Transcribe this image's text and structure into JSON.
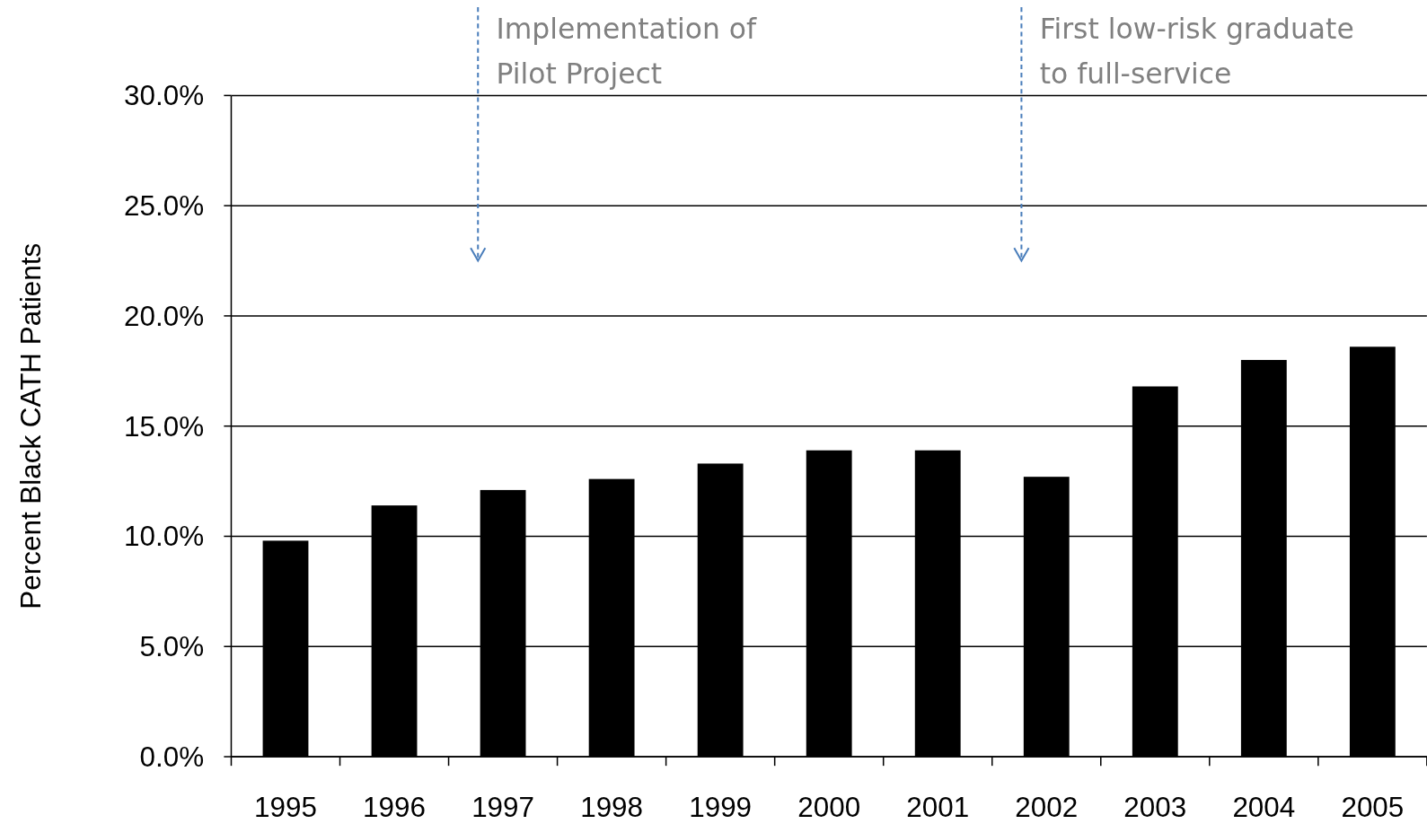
{
  "chart_data": {
    "type": "bar",
    "ylabel": "Percent Black CATH Patients",
    "categories": [
      "1995",
      "1996",
      "1997",
      "1998",
      "1999",
      "2000",
      "2001",
      "2002",
      "2003",
      "2004",
      "2005"
    ],
    "values": [
      9.8,
      11.4,
      12.1,
      12.6,
      13.3,
      13.9,
      13.9,
      12.7,
      16.8,
      18.0,
      18.6
    ],
    "color": "#000000",
    "ylim": [
      0,
      30
    ],
    "yticks": [
      {
        "value": 0,
        "label": "0.0%"
      },
      {
        "value": 5,
        "label": "5.0%"
      },
      {
        "value": 10,
        "label": "10.0%"
      },
      {
        "value": 15,
        "label": "15.0%"
      },
      {
        "value": 20,
        "label": "20.0%"
      },
      {
        "value": 25,
        "label": "25.0%"
      },
      {
        "value": 30,
        "label": "30.0%"
      }
    ],
    "grid": "y",
    "ref_lines": [
      {
        "axis": "x",
        "value": "1997",
        "label": "Implementation of\nPilot Project",
        "color": "#4a7ebb",
        "line_style": "dashed"
      },
      {
        "axis": "x",
        "value": "2002",
        "label": "First low-risk graduate\nto full-service",
        "color": "#4a7ebb",
        "line_style": "dashed"
      }
    ]
  }
}
